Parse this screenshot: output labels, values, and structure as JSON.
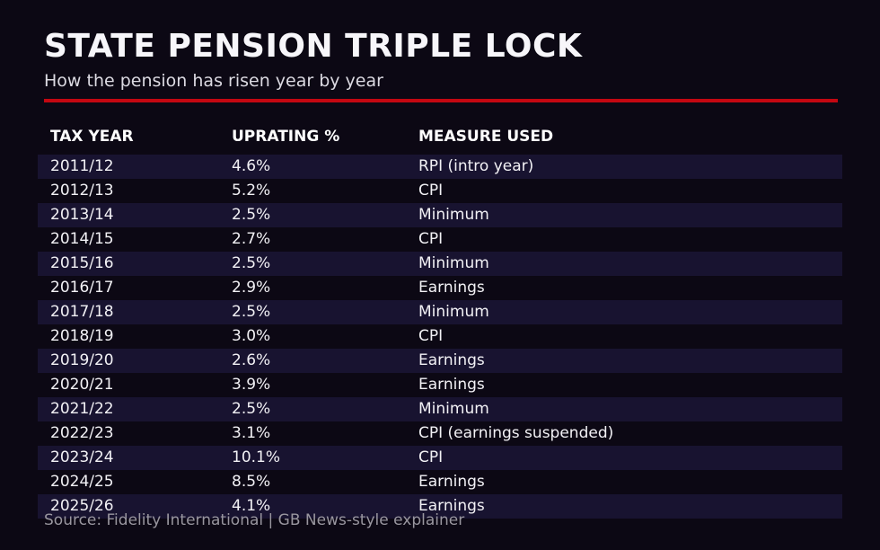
{
  "page": {
    "title": "STATE PENSION TRIPLE LOCK",
    "subtitle": "How the pension has risen year by year",
    "source": "Source: Fidelity International | GB News-style explainer"
  },
  "colors": {
    "background": "#0c0814",
    "row_stripe": "#181330",
    "accent_red": "#c40711",
    "text_primary": "#f2f1f5",
    "text_muted": "#99969f"
  },
  "table": {
    "headers": [
      "TAX YEAR",
      "UPRATING %",
      "MEASURE USED"
    ],
    "rows": [
      [
        "2011/12",
        "4.6%",
        "RPI (intro year)"
      ],
      [
        "2012/13",
        "5.2%",
        "CPI"
      ],
      [
        "2013/14",
        "2.5%",
        "Minimum"
      ],
      [
        "2014/15",
        "2.7%",
        "CPI"
      ],
      [
        "2015/16",
        "2.5%",
        "Minimum"
      ],
      [
        "2016/17",
        "2.9%",
        "Earnings"
      ],
      [
        "2017/18",
        "2.5%",
        "Minimum"
      ],
      [
        "2018/19",
        "3.0%",
        "CPI"
      ],
      [
        "2019/20",
        "2.6%",
        "Earnings"
      ],
      [
        "2020/21",
        "3.9%",
        "Earnings"
      ],
      [
        "2021/22",
        "2.5%",
        "Minimum"
      ],
      [
        "2022/23",
        "3.1%",
        "CPI (earnings suspended)"
      ],
      [
        "2023/24",
        "10.1%",
        "CPI"
      ],
      [
        "2024/25",
        "8.5%",
        "Earnings"
      ],
      [
        "2025/26",
        "4.1%",
        "Earnings"
      ]
    ]
  },
  "chart_data": {
    "type": "table",
    "title": "STATE PENSION TRIPLE LOCK",
    "subtitle": "How the pension has risen year by year",
    "columns": [
      "TAX YEAR",
      "UPRATING %",
      "MEASURE USED"
    ],
    "categories": [
      "2011/12",
      "2012/13",
      "2013/14",
      "2014/15",
      "2015/16",
      "2016/17",
      "2017/18",
      "2018/19",
      "2019/20",
      "2020/21",
      "2021/22",
      "2022/23",
      "2023/24",
      "2024/25",
      "2025/26"
    ],
    "series": [
      {
        "name": "Uprating %",
        "values": [
          4.6,
          5.2,
          2.5,
          2.7,
          2.5,
          2.9,
          2.5,
          3.0,
          2.6,
          3.9,
          2.5,
          3.1,
          10.1,
          8.5,
          4.1
        ]
      },
      {
        "name": "Measure used",
        "values": [
          "RPI (intro year)",
          "CPI",
          "Minimum",
          "CPI",
          "Minimum",
          "Earnings",
          "Minimum",
          "CPI",
          "Earnings",
          "Earnings",
          "Minimum",
          "CPI (earnings suspended)",
          "CPI",
          "Earnings",
          "Earnings"
        ]
      }
    ],
    "rows": [
      [
        "2011/12",
        "4.6%",
        "RPI (intro year)"
      ],
      [
        "2012/13",
        "5.2%",
        "CPI"
      ],
      [
        "2013/14",
        "2.5%",
        "Minimum"
      ],
      [
        "2014/15",
        "2.7%",
        "CPI"
      ],
      [
        "2015/16",
        "2.5%",
        "Minimum"
      ],
      [
        "2016/17",
        "2.9%",
        "Earnings"
      ],
      [
        "2017/18",
        "2.5%",
        "Minimum"
      ],
      [
        "2018/19",
        "3.0%",
        "CPI"
      ],
      [
        "2019/20",
        "2.6%",
        "Earnings"
      ],
      [
        "2020/21",
        "3.9%",
        "Earnings"
      ],
      [
        "2021/22",
        "2.5%",
        "Minimum"
      ],
      [
        "2022/23",
        "3.1%",
        "CPI (earnings suspended)"
      ],
      [
        "2023/24",
        "10.1%",
        "CPI"
      ],
      [
        "2024/25",
        "8.5%",
        "Earnings"
      ],
      [
        "2025/26",
        "4.1%",
        "Earnings"
      ]
    ],
    "source_note": "Source: Fidelity International | GB News-style explainer"
  }
}
